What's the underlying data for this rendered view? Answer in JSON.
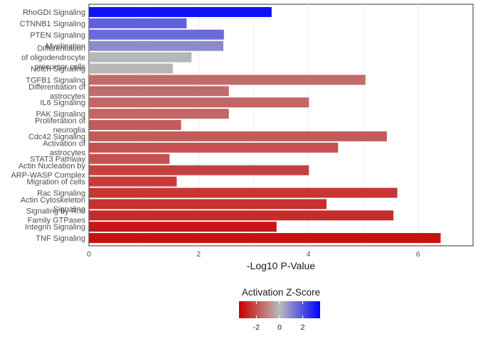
{
  "chart_data": {
    "type": "bar",
    "orientation": "horizontal",
    "xlabel": "-Log10 P-Value",
    "ylabel": "",
    "xlim": [
      0,
      7
    ],
    "x_ticks": [
      0,
      2,
      4,
      6
    ],
    "grid": true,
    "categories": [
      "RhoGDI Signaling",
      "CTNNB1 Signaling",
      "PTEN Signaling",
      "Myelination",
      "Differentiation of oligodendrocyte precursor cells",
      "Notch Signaling",
      "TGFB1 Signaling",
      "Differentiation of astrocytes",
      "IL6 Signaling",
      "PAK Signaling",
      "Proliferation of neuroglia",
      "Cdc42 Signaling",
      "Activation of astrocytes",
      "STAT3 Pathway",
      "Actin Nucleation by ARP-WASP Complex",
      "Migration of cells",
      "Rac Signaling",
      "Actin Cytoskeleton Signaling",
      "Signaling by Rho Family GTPases",
      "Integrin Signaling",
      "TNF Signaling"
    ],
    "category_lines": [
      [
        "RhoGDI Signaling"
      ],
      [
        "CTNNB1 Signaling"
      ],
      [
        "PTEN Signaling"
      ],
      [
        "Myelination"
      ],
      [
        "Differentiation",
        "of oligodendrocyte",
        "precursor cells"
      ],
      [
        "Notch Signaling"
      ],
      [
        "TGFB1 Signaling"
      ],
      [
        "Differentiation of",
        "astrocytes"
      ],
      [
        "IL6 Signaling"
      ],
      [
        "PAK Signaling"
      ],
      [
        "Proliferation of",
        "neuroglia"
      ],
      [
        "Cdc42 Signaling"
      ],
      [
        "Activation of",
        "astrocytes"
      ],
      [
        "STAT3 Pathway"
      ],
      [
        "Actin Nucleation by",
        "ARP-WASP Complex"
      ],
      [
        "Migration of cells"
      ],
      [
        "Rac Signaling"
      ],
      [
        "Actin Cytoskeleton",
        "Signaling"
      ],
      [
        "Signaling by Rho",
        "Family GTPases"
      ],
      [
        "Integrin Signaling"
      ],
      [
        "TNF Signaling"
      ]
    ],
    "values": [
      3.33,
      1.78,
      2.46,
      2.45,
      1.87,
      1.53,
      5.04,
      2.55,
      4.01,
      2.55,
      1.68,
      5.43,
      4.54,
      1.47,
      4.01,
      1.6,
      5.62,
      4.33,
      5.55,
      3.42,
      6.41
    ],
    "zscores": [
      3.2,
      1.7,
      1.5,
      0.9,
      0.1,
      -0.1,
      -1.5,
      -1.5,
      -1.6,
      -1.6,
      -1.8,
      -1.8,
      -2.0,
      -2.0,
      -2.3,
      -2.4,
      -2.5,
      -2.6,
      -2.7,
      -3.1,
      -3.2
    ],
    "colorbar": {
      "title": "Activation Z-Score",
      "ticks": [
        -2,
        0,
        2
      ],
      "range": [
        -3.5,
        3.5
      ],
      "low_color": "#cc0000",
      "mid_color": "#bbbbbb",
      "high_color": "#0000ff"
    },
    "legend_placement": "bottom"
  }
}
